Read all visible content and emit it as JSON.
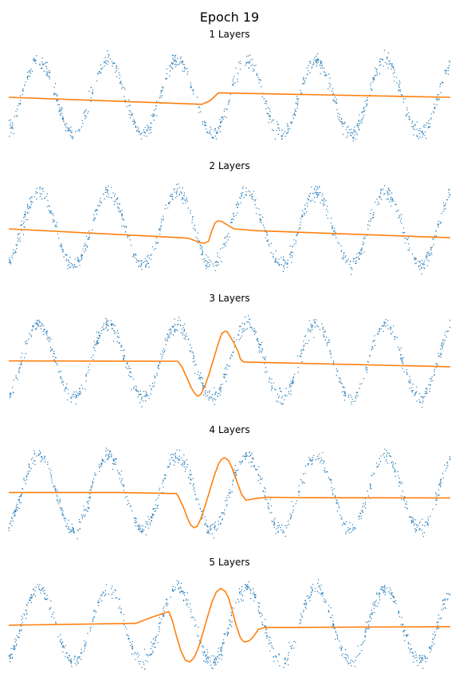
{
  "figure": {
    "title": "Epoch 19"
  },
  "colors": {
    "scatter": "#1f77b4",
    "prediction": "#ff7f0e"
  },
  "chart_data": [
    {
      "type": "line",
      "title": "1 Layers",
      "grid": false,
      "axes_visible": false,
      "xlim": [
        -20,
        20
      ],
      "ylim": [
        -1.3,
        1.3
      ],
      "scatter_series": {
        "function": "sin(x)",
        "x_range": [
          -20,
          20
        ],
        "noise_std": 0.1
      },
      "series": [
        {
          "x": [
            -20,
            -2.5,
            -1.8,
            -1,
            20
          ],
          "y": [
            0.0,
            -0.19,
            -0.1,
            0.12,
            0.0
          ]
        }
      ]
    },
    {
      "type": "line",
      "title": "2 Layers",
      "grid": false,
      "axes_visible": false,
      "xlim": [
        -20,
        20
      ],
      "ylim": [
        -1.3,
        1.3
      ],
      "scatter_series": {
        "function": "sin(x)",
        "x_range": [
          -20,
          20
        ],
        "noise_std": 0.1
      },
      "series": [
        {
          "x": [
            -20,
            -3.8,
            -3.3,
            -2.7,
            -2.3,
            -1.9,
            -1.6,
            -1.3,
            -1.0,
            -0.7,
            0.4,
            2.5,
            20
          ],
          "y": [
            0.0,
            -0.25,
            -0.3,
            -0.37,
            -0.39,
            -0.34,
            -0.05,
            0.17,
            0.22,
            0.2,
            0.0,
            -0.05,
            -0.24
          ]
        }
      ]
    },
    {
      "type": "line",
      "title": "3 Layers",
      "grid": false,
      "axes_visible": false,
      "xlim": [
        -20,
        20
      ],
      "ylim": [
        -1.3,
        1.3
      ],
      "scatter_series": {
        "function": "sin(x)",
        "x_range": [
          -20,
          20
        ],
        "noise_std": 0.1
      },
      "series": [
        {
          "x": [
            -20,
            -4.7,
            -4.3,
            -3.9,
            -3.5,
            -3.2,
            -2.9,
            -2.6,
            -2.2,
            -1.8,
            -1.4,
            -1.0,
            -0.7,
            -0.4,
            -0.2,
            0.0,
            0.4,
            0.8,
            1.0,
            1.3,
            20
          ],
          "y": [
            0.01,
            0.0,
            -0.15,
            -0.42,
            -0.7,
            -0.85,
            -0.95,
            -0.9,
            -0.65,
            -0.3,
            0.1,
            0.5,
            0.75,
            0.82,
            0.8,
            0.7,
            0.5,
            0.25,
            0.05,
            -0.02,
            -0.15
          ]
        }
      ]
    },
    {
      "type": "line",
      "title": "4 Layers",
      "grid": false,
      "axes_visible": false,
      "xlim": [
        -20,
        20
      ],
      "ylim": [
        -1.3,
        1.3
      ],
      "scatter_series": {
        "function": "sin(x)",
        "x_range": [
          -20,
          20
        ],
        "noise_std": 0.1
      },
      "series": [
        {
          "x": [
            -20,
            -10,
            -4.8,
            -4.5,
            -4.1,
            -3.8,
            -3.5,
            -3.2,
            -2.9,
            -2.6,
            -2.2,
            -1.8,
            -1.4,
            -1.0,
            -0.7,
            -0.4,
            -0.1,
            0.2,
            0.5,
            0.8,
            1.1,
            1.5,
            2.5,
            3.5,
            6,
            20
          ],
          "y": [
            0.01,
            0.01,
            -0.02,
            -0.18,
            -0.45,
            -0.7,
            -0.88,
            -0.95,
            -0.9,
            -0.7,
            -0.35,
            0.05,
            0.45,
            0.78,
            0.92,
            0.95,
            0.88,
            0.7,
            0.45,
            0.2,
            -0.05,
            -0.2,
            -0.15,
            -0.12,
            -0.13,
            -0.14
          ]
        }
      ]
    },
    {
      "type": "line",
      "title": "5 Layers",
      "grid": false,
      "axes_visible": false,
      "xlim": [
        -20,
        20
      ],
      "ylim": [
        -1.3,
        1.3
      ],
      "scatter_series": {
        "function": "sin(x)",
        "x_range": [
          -20,
          20
        ],
        "noise_std": 0.1
      },
      "series": [
        {
          "x": [
            -20,
            -8.5,
            -7,
            -5.5,
            -5.2,
            -4.8,
            -4.4,
            -4.0,
            -3.6,
            -3.2,
            -2.8,
            -2.4,
            -2.0,
            -1.6,
            -1.2,
            -0.8,
            -0.4,
            -0.1,
            0.2,
            0.6,
            1.0,
            1.3,
            1.5,
            1.8,
            2.2,
            2.6,
            3.2,
            6,
            20
          ],
          "y": [
            0.0,
            0.05,
            0.22,
            0.37,
            0.15,
            -0.3,
            -0.7,
            -0.95,
            -1.0,
            -0.88,
            -0.6,
            -0.2,
            0.22,
            0.62,
            0.9,
            1.0,
            0.92,
            0.75,
            0.45,
            0.0,
            -0.35,
            -0.45,
            -0.45,
            -0.42,
            -0.3,
            -0.12,
            -0.06,
            -0.06,
            -0.04
          ]
        }
      ]
    }
  ]
}
